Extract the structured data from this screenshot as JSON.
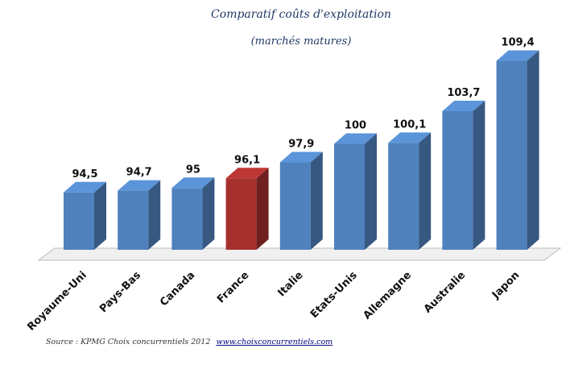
{
  "chart_data": {
    "type": "bar",
    "title": "Comparatif coûts d'exploitation",
    "subtitle": "(marchés matures)",
    "categories": [
      "Royaume-Uni",
      "Pays-Bas",
      "Canada",
      "France",
      "Italie",
      "Etats-Unis",
      "Allemagne",
      "Australie",
      "Japon"
    ],
    "values": [
      94.5,
      94.7,
      95,
      96.1,
      97.9,
      100,
      100.1,
      103.7,
      109.4
    ],
    "value_labels": [
      "94,5",
      "94,7",
      "95",
      "96,1",
      "97,9",
      "100",
      "100,1",
      "103,7",
      "109,4"
    ],
    "highlight_category": "France",
    "ylim": [
      88,
      111
    ],
    "grid": false,
    "legend": "none",
    "colors": {
      "bar": "#4f81bd",
      "bar_highlight": "#a5302e",
      "title": "#1f3864"
    },
    "style": "3d-column"
  },
  "source": {
    "text": "Source : KPMG Choix concurrentiels 2012",
    "link": "www.choixconcurrentiels.com"
  }
}
